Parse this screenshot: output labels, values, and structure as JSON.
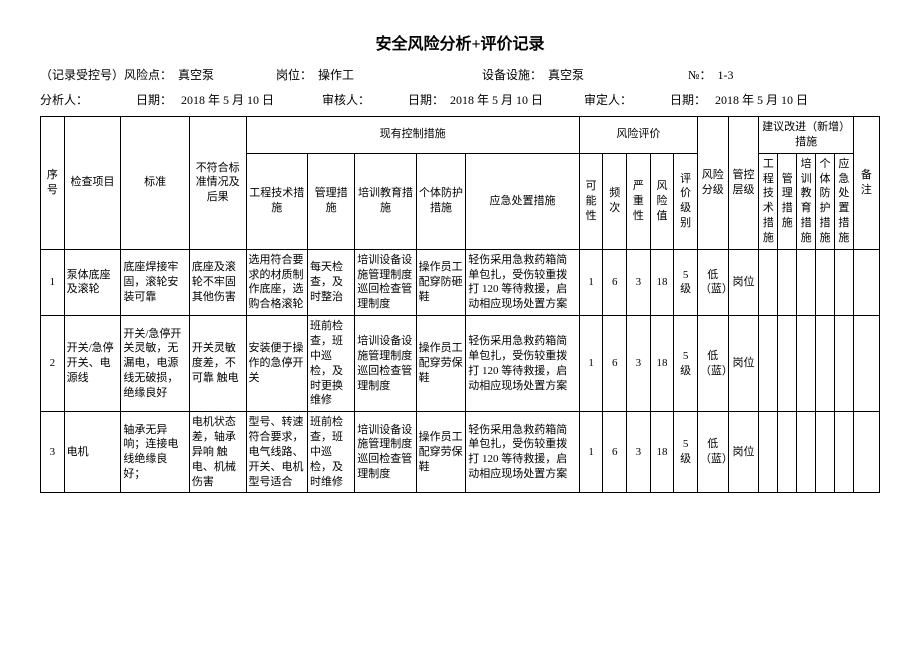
{
  "title": "安全风险分析+评价记录",
  "meta": {
    "risk_point_label": "（记录受控号）风险点：",
    "risk_point": "真空泵",
    "position_label": "岗位：",
    "position": "操作工",
    "equipment_label": "设备设施：",
    "equipment": "真空泵",
    "no_label": "№：",
    "no": "1-3",
    "analyst_label": "分析人：",
    "date_label": "日期：",
    "date1": "2018 年 5 月 10 日",
    "reviewer_label": "审核人：",
    "date2": "2018 年 5 月 10 日",
    "approver_label": "审定人：",
    "date3": "2018 年 5 月 10 日"
  },
  "columns": {
    "seq": "序号",
    "check_item": "检查项目",
    "standard": "标准",
    "noncon": "不符合标准情况及后果",
    "control_group": "现有控制措施",
    "eng": "工程技术措施",
    "mgmt": "管理措施",
    "train": "培训教育措施",
    "ppe": "个体防护措施",
    "emergency": "应急处置措施",
    "eval_group": "风险评价",
    "possibility": "可能性",
    "frequency": "频次",
    "severity": "严重性",
    "risk_val": "风险值",
    "eval_level": "评价级别",
    "risk_class": "风险分级",
    "ctrl_level": "管控层级",
    "suggest_group": "建议改进（新增）措施",
    "s_eng": "工程技术措施",
    "s_mgmt": "管理措施",
    "s_train": "培训教育措施",
    "s_ppe": "个体防护措施",
    "s_emg": "应急处置措施",
    "remark": "备注"
  },
  "rows": [
    {
      "seq": "1",
      "check_item": "泵体底座及滚轮",
      "standard": "底座焊接牢固，滚轮安装可靠",
      "noncon": "底座及滚轮不牢固其他伤害",
      "eng": "选用符合要求的材质制作底座，选购合格滚轮",
      "mgmt": "每天检查，及时整治",
      "train": "培训设备设施管理制度 巡回检查管理制度",
      "ppe": "操作员工配穿防砸鞋",
      "emergency": "轻伤采用急救药箱简单包扎，受伤较重拨打 120 等待救援，启动相应现场处置方案",
      "possibility": "1",
      "frequency": "6",
      "severity": "3",
      "risk_val": "18",
      "eval_level": "5 级",
      "risk_class": "低（蓝）",
      "ctrl_level": "岗位"
    },
    {
      "seq": "2",
      "check_item": "开关/急停开关、电源线",
      "standard": "开关/急停开关灵敏，无漏电，电源线无破损，绝缘良好",
      "noncon": "开关灵敏度差，不可靠 触电",
      "eng": "安装便于操作的急停开关",
      "mgmt": "班前检查，班中巡检，及时更换维修",
      "train": "培训设备设施管理制度 巡回检查管理制度",
      "ppe": "操作员工配穿劳保鞋",
      "emergency": "轻伤采用急救药箱简单包扎，受伤较重拨打 120 等待救援，启动相应现场处置方案",
      "possibility": "1",
      "frequency": "6",
      "severity": "3",
      "risk_val": "18",
      "eval_level": "5 级",
      "risk_class": "低（蓝）",
      "ctrl_level": "岗位"
    },
    {
      "seq": "3",
      "check_item": "电机",
      "standard": "轴承无异响；连接电线绝缘良好；",
      "noncon": "电机状态差，轴承异响 触电、机械伤害",
      "eng": "型号、转速符合要求，电气线路、开关、电机型号适合",
      "mgmt": "班前检查，班中巡检，及时维修",
      "train": "培训设备设施管理制度 巡回检查管理制度",
      "ppe": "操作员工配穿劳保鞋",
      "emergency": "轻伤采用急救药箱简单包扎，受伤较重拨打 120 等待救援，启动相应现场处置方案",
      "possibility": "1",
      "frequency": "6",
      "severity": "3",
      "risk_val": "18",
      "eval_level": "5 级",
      "risk_class": "低（蓝）",
      "ctrl_level": "岗位"
    }
  ],
  "col_widths": {
    "seq": 20,
    "check_item": 48,
    "standard": 58,
    "noncon": 48,
    "eng": 52,
    "mgmt": 40,
    "train": 52,
    "ppe": 42,
    "emergency": 96,
    "possibility": 20,
    "frequency": 20,
    "severity": 20,
    "risk_val": 20,
    "eval_level": 20,
    "risk_class": 26,
    "ctrl_level": 26,
    "s_eng": 16,
    "s_mgmt": 16,
    "s_train": 16,
    "s_ppe": 16,
    "s_emg": 16,
    "remark": 22
  }
}
